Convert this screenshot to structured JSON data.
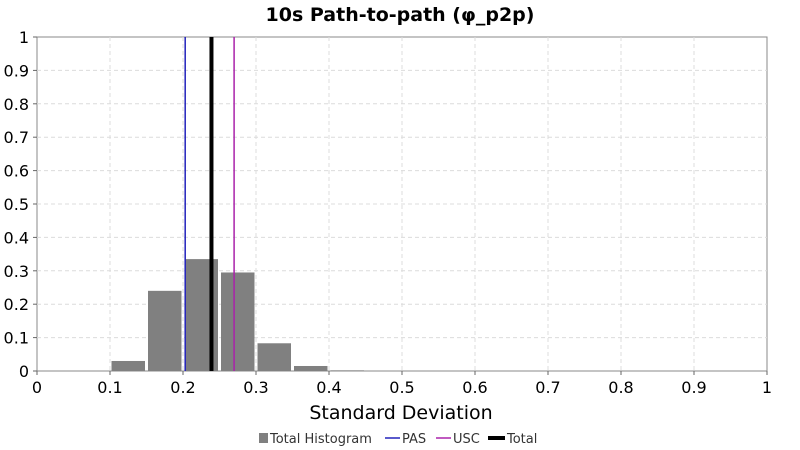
{
  "chart_data": {
    "type": "bar",
    "title": "10s Path-to-path (φ_p2p)",
    "xlabel": "Standard Deviation",
    "ylabel": "",
    "xlim": [
      0,
      1
    ],
    "ylim": [
      0,
      1
    ],
    "xticks": [
      "0",
      "0.1",
      "0.2",
      "0.3",
      "0.4",
      "0.5",
      "0.6",
      "0.7",
      "0.8",
      "0.9",
      "1"
    ],
    "yticks": [
      "0",
      "0.1",
      "0.2",
      "0.3",
      "0.4",
      "0.5",
      "0.6",
      "0.7",
      "0.8",
      "0.9",
      "1"
    ],
    "grid": true,
    "legend_position": "bottom",
    "histogram": {
      "name": "Total Histogram",
      "color": "#808080",
      "bin_width": 0.05,
      "bins": [
        {
          "x0": 0.1,
          "x1": 0.15,
          "value": 0.03
        },
        {
          "x0": 0.15,
          "x1": 0.2,
          "value": 0.24
        },
        {
          "x0": 0.2,
          "x1": 0.25,
          "value": 0.335
        },
        {
          "x0": 0.25,
          "x1": 0.3,
          "value": 0.295
        },
        {
          "x0": 0.3,
          "x1": 0.35,
          "value": 0.083
        },
        {
          "x0": 0.35,
          "x1": 0.4,
          "value": 0.015
        },
        {
          "x0": 0.4,
          "x1": 0.45,
          "value": 0.002
        }
      ]
    },
    "vertical_lines": [
      {
        "name": "PAS",
        "x": 0.203,
        "color": "#2222bb",
        "width": 1.5
      },
      {
        "name": "USC",
        "x": 0.27,
        "color": "#aa22aa",
        "width": 1.5
      },
      {
        "name": "Total",
        "x": 0.239,
        "color": "#000000",
        "width": 4
      }
    ]
  }
}
